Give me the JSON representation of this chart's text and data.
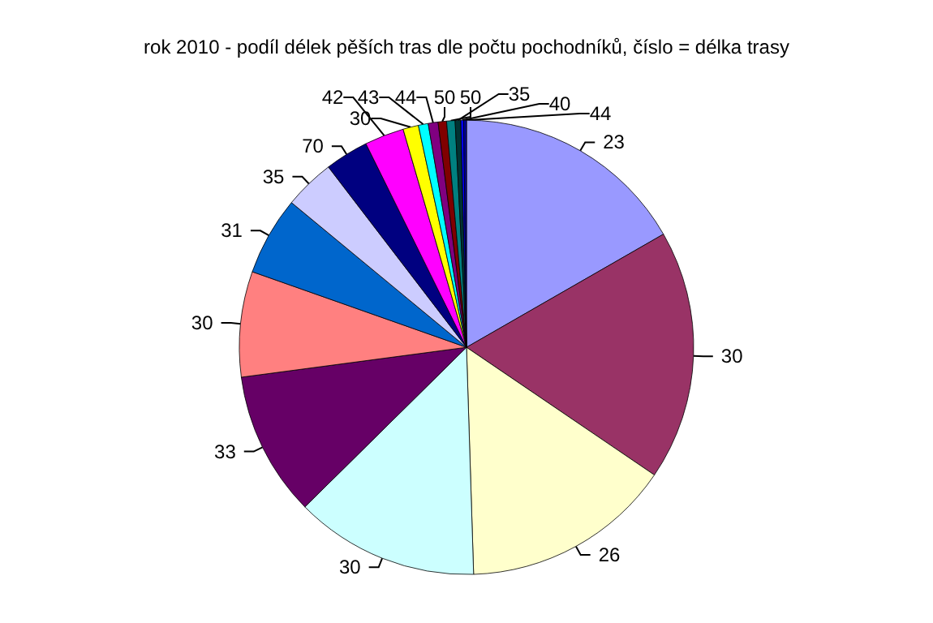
{
  "chart_data": {
    "type": "pie",
    "title": "rok 2010 - podíl délek pěších tras dle počtu pochodníků, číslo = délka trasy",
    "categories": [
      "23",
      "30",
      "26",
      "30",
      "33",
      "30",
      "31",
      "35",
      "70",
      "42",
      "30",
      "43",
      "44",
      "50",
      "50",
      "35",
      "40",
      "44"
    ],
    "values": [
      16.7,
      17.8,
      15.0,
      13.1,
      10.3,
      7.5,
      5.6,
      3.6,
      3.1,
      2.8,
      1.1,
      0.7,
      0.7,
      0.6,
      0.6,
      0.4,
      0.2,
      0.2
    ],
    "colors": [
      "#9999ff",
      "#993366",
      "#ffffcc",
      "#ccffff",
      "#660066",
      "#ff8080",
      "#0066cc",
      "#ccccff",
      "#000080",
      "#ff00ff",
      "#ffff00",
      "#00ffff",
      "#800080",
      "#800000",
      "#008080",
      "#003333",
      "#0000ff",
      "#000099"
    ],
    "legend": false
  }
}
